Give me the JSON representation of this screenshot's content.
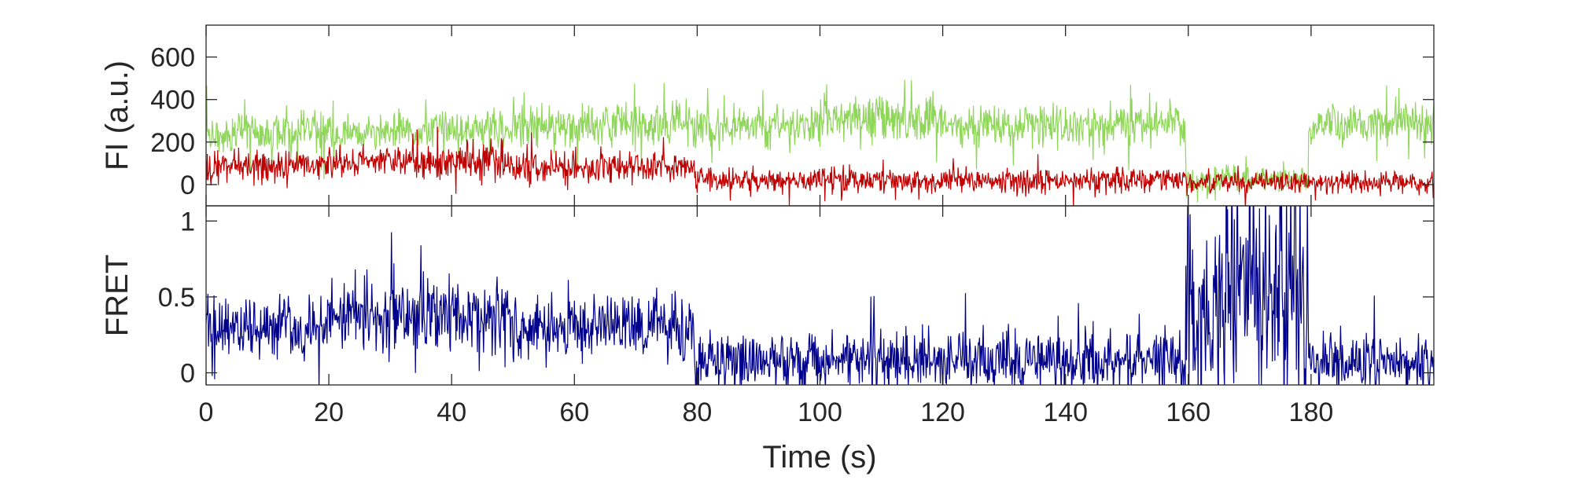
{
  "chart_data": [
    {
      "type": "line",
      "panel": "top",
      "title": "",
      "xlabel": "",
      "ylabel": "FI (a.u.)",
      "xlim": [
        0,
        200
      ],
      "ylim": [
        -100,
        750
      ],
      "yticks": [
        0,
        200,
        400,
        600
      ],
      "ytick_labels": [
        "0",
        "200",
        "400",
        "600"
      ],
      "grid": false,
      "series": [
        {
          "color": "#8fd65a",
          "segments": [
            {
              "t0": 0,
              "t1": 5,
              "mean": 230,
              "noise": 60
            },
            {
              "t0": 5,
              "t1": 20,
              "mean": 250,
              "noise": 70
            },
            {
              "t0": 20,
              "t1": 50,
              "mean": 250,
              "noise": 65
            },
            {
              "t0": 50,
              "t1": 80,
              "mean": 280,
              "noise": 75
            },
            {
              "t0": 80,
              "t1": 100,
              "mean": 270,
              "noise": 70
            },
            {
              "t0": 100,
              "t1": 120,
              "mean": 310,
              "noise": 80
            },
            {
              "t0": 120,
              "t1": 159.5,
              "mean": 280,
              "noise": 65
            },
            {
              "t0": 159.5,
              "t1": 179.5,
              "mean": 20,
              "noise": 45
            },
            {
              "t0": 179.5,
              "t1": 200,
              "mean": 290,
              "noise": 65
            }
          ]
        },
        {
          "color": "#c00000",
          "segments": [
            {
              "t0": 0,
              "t1": 20,
              "mean": 80,
              "noise": 55
            },
            {
              "t0": 20,
              "t1": 50,
              "mean": 110,
              "noise": 55
            },
            {
              "t0": 50,
              "t1": 79.5,
              "mean": 80,
              "noise": 50
            },
            {
              "t0": 79.5,
              "t1": 159.5,
              "mean": 20,
              "noise": 40
            },
            {
              "t0": 159.5,
              "t1": 200,
              "mean": 10,
              "noise": 35
            }
          ]
        }
      ]
    },
    {
      "type": "line",
      "panel": "bottom",
      "title": "",
      "xlabel": "Time (s)",
      "ylabel": "FRET",
      "xlim": [
        0,
        200
      ],
      "ylim": [
        -0.08,
        1.1
      ],
      "xticks": [
        0,
        20,
        40,
        60,
        80,
        100,
        120,
        140,
        160,
        180
      ],
      "xtick_labels": [
        "0",
        "20",
        "40",
        "60",
        "80",
        "100",
        "120",
        "140",
        "160",
        "180"
      ],
      "yticks": [
        0,
        0.5,
        1
      ],
      "ytick_labels": [
        "0",
        "0.5",
        "1"
      ],
      "grid": false,
      "series": [
        {
          "color": "#00008b",
          "segments": [
            {
              "t0": 0,
              "t1": 20,
              "mean": 0.3,
              "noise": 0.16
            },
            {
              "t0": 20,
              "t1": 50,
              "mean": 0.38,
              "noise": 0.17
            },
            {
              "t0": 50,
              "t1": 79.5,
              "mean": 0.3,
              "noise": 0.16
            },
            {
              "t0": 79.5,
              "t1": 159.5,
              "mean": 0.08,
              "noise": 0.13
            },
            {
              "t0": 159.5,
              "t1": 179.5,
              "mean": 0.5,
              "noise": 0.55
            },
            {
              "t0": 179.5,
              "t1": 200,
              "mean": 0.08,
              "noise": 0.12
            }
          ]
        }
      ]
    }
  ]
}
